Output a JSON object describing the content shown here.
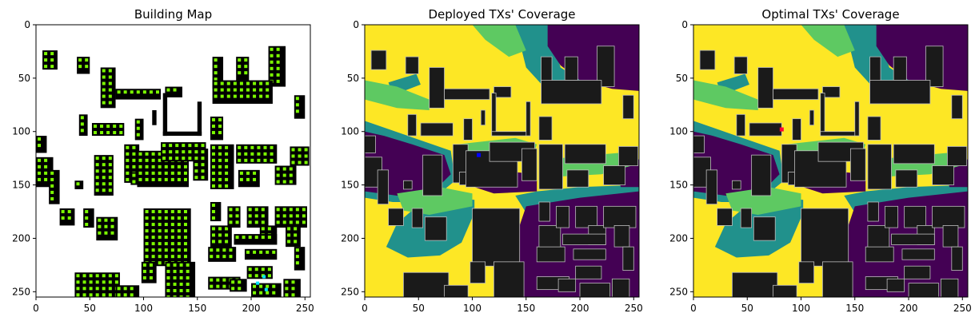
{
  "chart_data": [
    {
      "type": "heatmap",
      "title": "Building Map",
      "xlim": [
        0,
        255
      ],
      "ylim": [
        255,
        0
      ],
      "xticks": [
        0,
        50,
        100,
        150,
        200,
        250
      ],
      "yticks": [
        0,
        50,
        100,
        150,
        200,
        250
      ],
      "tick_labels": [
        "0",
        "50",
        "100",
        "150",
        "200",
        "250"
      ],
      "colors": {
        "background": "#ffffff",
        "building": "#000000",
        "marker": "#7cfc00",
        "highlight": "#00e5ff"
      }
    },
    {
      "type": "heatmap",
      "title": "Deployed TXs' Coverage",
      "xlim": [
        0,
        255
      ],
      "ylim": [
        255,
        0
      ],
      "xticks": [
        0,
        50,
        100,
        150,
        200,
        250
      ],
      "yticks": [
        0,
        50,
        100,
        150,
        200,
        250
      ],
      "tick_labels": [
        "0",
        "50",
        "100",
        "150",
        "200",
        "250"
      ],
      "colors": {
        "covered": "#fde725",
        "strong": "#5ec962",
        "medium": "#21918c",
        "none": "#440154",
        "building": "#1a1a1a",
        "tx": "#0000ff"
      }
    },
    {
      "type": "heatmap",
      "title": "Optimal TXs' Coverage",
      "xlim": [
        0,
        255
      ],
      "ylim": [
        255,
        0
      ],
      "xticks": [
        0,
        50,
        100,
        150,
        200,
        250
      ],
      "yticks": [
        0,
        50,
        100,
        150,
        200,
        250
      ],
      "tick_labels": [
        "0",
        "50",
        "100",
        "150",
        "200",
        "250"
      ],
      "colors": {
        "covered": "#fde725",
        "strong": "#5ec962",
        "medium": "#21918c",
        "none": "#440154",
        "building": "#1a1a1a",
        "tx": "#ff0033"
      }
    }
  ]
}
